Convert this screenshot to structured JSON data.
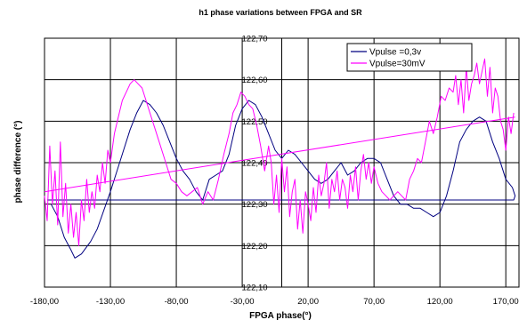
{
  "chart_data": {
    "type": "line",
    "title": "h1 phase variations between FPGA and SR",
    "xlabel": "FPGA phase(°)",
    "ylabel": "phase difference (°)",
    "xlim": [
      -180,
      180
    ],
    "ylim": [
      122.1,
      122.7
    ],
    "x_ticks": [
      -180,
      -130,
      -80,
      -30,
      20,
      70,
      120,
      170
    ],
    "x_tick_labels": [
      "-180,00",
      "-130,00",
      "-80,00",
      "-30,00",
      "20,00",
      "70,00",
      "120,00",
      "170,00"
    ],
    "y_ticks": [
      122.1,
      122.2,
      122.3,
      122.4,
      122.5,
      122.6,
      122.7
    ],
    "y_tick_labels": [
      "122,10",
      "122,20",
      "122,30",
      "122,40",
      "122,50",
      "122,60",
      "122,70"
    ],
    "grid": true,
    "legend_position": "top-right",
    "series": [
      {
        "name": "Vpulse =0,3v",
        "color": "#000080",
        "x": [
          -175,
          -170,
          -165,
          -160,
          -157,
          -152,
          -145,
          -140,
          -130,
          -120,
          -115,
          -110,
          -105,
          -100,
          -95,
          -90,
          -85,
          -80,
          -75,
          -70,
          -65,
          -60,
          -55,
          -50,
          -45,
          -40,
          -35,
          -30,
          -25,
          -20,
          -15,
          -10,
          -5,
          0,
          5,
          10,
          15,
          20,
          25,
          30,
          35,
          40,
          45,
          50,
          55,
          60,
          65,
          70,
          75,
          80,
          85,
          90,
          95,
          100,
          105,
          110,
          115,
          120,
          125,
          130,
          135,
          140,
          145,
          150,
          155,
          160,
          165,
          170,
          175,
          177,
          176,
          170,
          160,
          140,
          120,
          80,
          20,
          -40,
          -100,
          -140,
          -170,
          -178
        ],
        "y": [
          122.3,
          122.27,
          122.22,
          122.19,
          122.17,
          122.18,
          122.21,
          122.24,
          122.33,
          122.43,
          122.48,
          122.52,
          122.55,
          122.54,
          122.52,
          122.49,
          122.45,
          122.41,
          122.38,
          122.36,
          122.33,
          122.31,
          122.36,
          122.37,
          122.38,
          122.42,
          122.49,
          122.53,
          122.55,
          122.54,
          122.51,
          122.47,
          122.43,
          122.41,
          122.43,
          122.42,
          122.4,
          122.38,
          122.36,
          122.35,
          122.36,
          122.38,
          122.4,
          122.37,
          122.38,
          122.4,
          122.41,
          122.41,
          122.4,
          122.36,
          122.32,
          122.3,
          122.3,
          122.29,
          122.29,
          122.28,
          122.27,
          122.28,
          122.32,
          122.38,
          122.45,
          122.48,
          122.5,
          122.51,
          122.5,
          122.45,
          122.41,
          122.36,
          122.34,
          122.32,
          122.31,
          122.31,
          122.31,
          122.31,
          122.31,
          122.31,
          122.31,
          122.31,
          122.31,
          122.31,
          122.31,
          122.31
        ]
      },
      {
        "name": "Vpulse=30mV",
        "color": "#FF00FF",
        "x": [
          -180,
          -178,
          -176,
          -174,
          -172,
          -170,
          -168,
          -166,
          -164,
          -162,
          -160,
          -158,
          -156,
          -154,
          -152,
          -150,
          -148,
          -146,
          -144,
          -142,
          -140,
          -138,
          -136,
          -134,
          -132,
          -130,
          -127,
          -124,
          -121,
          -118,
          -115,
          -112,
          -109,
          -106,
          -103,
          -100,
          -96,
          -92,
          -88,
          -84,
          -80,
          -76,
          -72,
          -68,
          -64,
          -60,
          -56,
          -52,
          -48,
          -44,
          -40,
          -37,
          -34,
          -31,
          -28,
          -25,
          -22,
          -19,
          -16,
          -13,
          -10,
          -8,
          -6,
          -4,
          -2,
          0,
          2,
          4,
          6,
          8,
          10,
          12,
          14,
          16,
          18,
          20,
          22,
          24,
          26,
          28,
          30,
          32,
          34,
          36,
          38,
          40,
          42,
          44,
          46,
          48,
          50,
          52,
          54,
          56,
          58,
          60,
          62,
          64,
          66,
          68,
          70,
          73,
          76,
          79,
          82,
          85,
          88,
          91,
          94,
          97,
          100,
          103,
          106,
          109,
          112,
          115,
          118,
          121,
          124,
          127,
          130,
          132,
          134,
          136,
          138,
          140,
          142,
          144,
          146,
          148,
          150,
          152,
          154,
          156,
          158,
          160,
          162,
          164,
          166,
          168,
          170,
          172,
          174,
          176
        ],
        "y": [
          122.32,
          122.26,
          122.44,
          122.3,
          122.38,
          122.25,
          122.45,
          122.27,
          122.35,
          122.23,
          122.3,
          122.22,
          122.28,
          122.2,
          122.31,
          122.26,
          122.36,
          122.28,
          122.33,
          122.29,
          122.37,
          122.33,
          122.4,
          122.35,
          122.43,
          122.4,
          122.47,
          122.51,
          122.55,
          122.57,
          122.59,
          122.6,
          122.59,
          122.58,
          122.55,
          122.52,
          122.48,
          122.44,
          122.4,
          122.36,
          122.35,
          122.33,
          122.32,
          122.33,
          122.34,
          122.3,
          122.33,
          122.31,
          122.36,
          122.42,
          122.47,
          122.52,
          122.54,
          122.57,
          122.56,
          122.54,
          122.53,
          122.49,
          122.44,
          122.38,
          122.44,
          122.4,
          122.3,
          122.37,
          122.28,
          122.41,
          122.33,
          122.39,
          122.27,
          122.33,
          122.36,
          122.24,
          122.31,
          122.23,
          122.33,
          122.3,
          122.26,
          122.34,
          122.28,
          122.37,
          122.32,
          122.35,
          122.4,
          122.29,
          122.36,
          122.33,
          122.38,
          122.31,
          122.36,
          122.34,
          122.29,
          122.37,
          122.33,
          122.39,
          122.31,
          122.38,
          122.42,
          122.36,
          122.4,
          122.35,
          122.39,
          122.35,
          122.33,
          122.32,
          122.31,
          122.32,
          122.33,
          122.32,
          122.31,
          122.36,
          122.38,
          122.41,
          122.4,
          122.45,
          122.5,
          122.47,
          122.51,
          122.56,
          122.55,
          122.58,
          122.57,
          122.61,
          122.54,
          122.6,
          122.52,
          122.63,
          122.55,
          122.59,
          122.61,
          122.64,
          122.59,
          122.62,
          122.65,
          122.56,
          122.63,
          122.52,
          122.58,
          122.56,
          122.5,
          122.48,
          122.43,
          122.51,
          122.47,
          122.52
        ]
      },
      {
        "type": "trendline",
        "color": "#FF00FF",
        "x": [
          -180,
          177
        ],
        "y": [
          122.33,
          122.51
        ]
      }
    ]
  }
}
